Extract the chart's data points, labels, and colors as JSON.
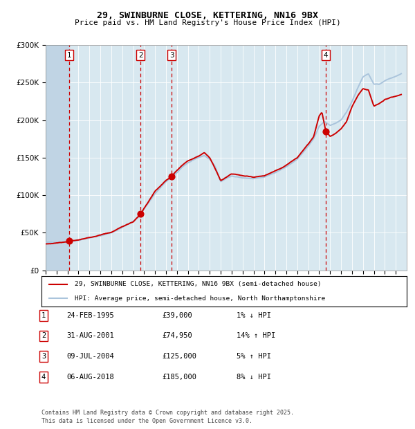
{
  "title": "29, SWINBURNE CLOSE, KETTERING, NN16 9BX",
  "subtitle": "Price paid vs. HM Land Registry's House Price Index (HPI)",
  "legend_line1": "29, SWINBURNE CLOSE, KETTERING, NN16 9BX (semi-detached house)",
  "legend_line2": "HPI: Average price, semi-detached house, North Northamptonshire",
  "footer1": "Contains HM Land Registry data © Crown copyright and database right 2025.",
  "footer2": "This data is licensed under the Open Government Licence v3.0.",
  "transactions": [
    {
      "num": 1,
      "date": "24-FEB-1995",
      "price": 39000,
      "pct": "1%",
      "dir": "↓"
    },
    {
      "num": 2,
      "date": "31-AUG-2001",
      "price": 74950,
      "pct": "14%",
      "dir": "↑"
    },
    {
      "num": 3,
      "date": "09-JUL-2004",
      "price": 125000,
      "pct": "5%",
      "dir": "↑"
    },
    {
      "num": 4,
      "date": "06-AUG-2018",
      "price": 185000,
      "pct": "8%",
      "dir": "↓"
    }
  ],
  "hpi_color": "#aac4dc",
  "price_color": "#cc0000",
  "marker_color": "#cc0000",
  "dashed_color": "#cc0000",
  "plot_bg_color": "#d8e8f0",
  "ylim": [
    0,
    300000
  ],
  "yticks": [
    0,
    50000,
    100000,
    150000,
    200000,
    250000,
    300000
  ],
  "xlim_start": 1993,
  "xlim_end": 2026,
  "hpi_anchors": [
    [
      1993.0,
      37000
    ],
    [
      1994.0,
      37500
    ],
    [
      1995.2,
      38500
    ],
    [
      1996.0,
      40000
    ],
    [
      1997.0,
      43000
    ],
    [
      1998.0,
      46000
    ],
    [
      1999.0,
      50000
    ],
    [
      2000.0,
      57000
    ],
    [
      2001.0,
      65000
    ],
    [
      2001.7,
      74000
    ],
    [
      2002.0,
      82000
    ],
    [
      2003.0,
      102000
    ],
    [
      2004.0,
      118000
    ],
    [
      2004.5,
      124000
    ],
    [
      2005.0,
      130000
    ],
    [
      2005.5,
      138000
    ],
    [
      2006.0,
      143000
    ],
    [
      2007.0,
      150000
    ],
    [
      2007.5,
      153000
    ],
    [
      2008.0,
      148000
    ],
    [
      2008.5,
      138000
    ],
    [
      2009.0,
      118000
    ],
    [
      2009.5,
      122000
    ],
    [
      2010.0,
      126000
    ],
    [
      2011.0,
      123000
    ],
    [
      2012.0,
      122000
    ],
    [
      2013.0,
      124000
    ],
    [
      2014.0,
      130000
    ],
    [
      2015.0,
      138000
    ],
    [
      2016.0,
      148000
    ],
    [
      2017.0,
      165000
    ],
    [
      2017.5,
      175000
    ],
    [
      2018.0,
      192000
    ],
    [
      2018.5,
      198000
    ],
    [
      2019.0,
      193000
    ],
    [
      2019.5,
      196000
    ],
    [
      2020.0,
      200000
    ],
    [
      2020.5,
      210000
    ],
    [
      2021.0,
      225000
    ],
    [
      2021.5,
      242000
    ],
    [
      2022.0,
      258000
    ],
    [
      2022.5,
      262000
    ],
    [
      2023.0,
      248000
    ],
    [
      2023.5,
      248000
    ],
    [
      2024.0,
      252000
    ],
    [
      2024.5,
      256000
    ],
    [
      2025.0,
      258000
    ],
    [
      2025.5,
      262000
    ]
  ],
  "price_anchors": [
    [
      1993.0,
      35000
    ],
    [
      1994.0,
      36500
    ],
    [
      1995.2,
      39000
    ],
    [
      1996.0,
      40500
    ],
    [
      1997.0,
      43500
    ],
    [
      1998.0,
      47000
    ],
    [
      1999.0,
      50500
    ],
    [
      2000.0,
      58000
    ],
    [
      2001.0,
      64000
    ],
    [
      2001.67,
      74950
    ],
    [
      2002.0,
      83000
    ],
    [
      2003.0,
      105000
    ],
    [
      2004.0,
      120000
    ],
    [
      2004.5,
      125000
    ],
    [
      2005.0,
      133000
    ],
    [
      2005.5,
      140000
    ],
    [
      2006.0,
      146000
    ],
    [
      2007.0,
      152000
    ],
    [
      2007.5,
      157000
    ],
    [
      2008.0,
      150000
    ],
    [
      2008.5,
      135000
    ],
    [
      2009.0,
      120000
    ],
    [
      2009.5,
      124000
    ],
    [
      2010.0,
      128000
    ],
    [
      2011.0,
      126000
    ],
    [
      2012.0,
      124000
    ],
    [
      2013.0,
      126000
    ],
    [
      2014.0,
      132000
    ],
    [
      2015.0,
      140000
    ],
    [
      2016.0,
      150000
    ],
    [
      2017.0,
      168000
    ],
    [
      2017.5,
      178000
    ],
    [
      2018.0,
      205000
    ],
    [
      2018.25,
      210000
    ],
    [
      2018.6,
      185000
    ],
    [
      2019.0,
      178000
    ],
    [
      2019.5,
      182000
    ],
    [
      2020.0,
      188000
    ],
    [
      2020.5,
      198000
    ],
    [
      2021.0,
      218000
    ],
    [
      2021.5,
      232000
    ],
    [
      2022.0,
      242000
    ],
    [
      2022.5,
      240000
    ],
    [
      2023.0,
      218000
    ],
    [
      2023.5,
      222000
    ],
    [
      2024.0,
      228000
    ],
    [
      2024.5,
      230000
    ],
    [
      2025.0,
      232000
    ],
    [
      2025.5,
      234000
    ]
  ]
}
